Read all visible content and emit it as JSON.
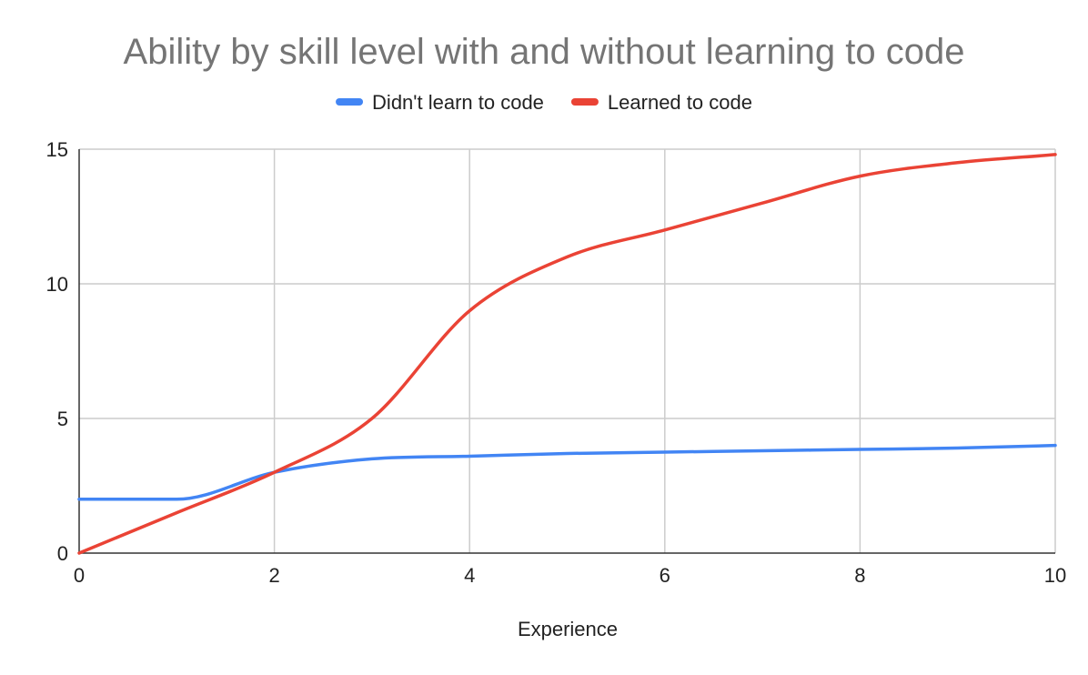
{
  "chart_data": {
    "type": "line",
    "title": "Ability by skill level with and without learning to code",
    "xlabel": "Experience",
    "ylabel": "",
    "xlim": [
      0,
      10
    ],
    "ylim": [
      0,
      15
    ],
    "xticks": [
      0,
      2,
      4,
      6,
      8,
      10
    ],
    "yticks": [
      0,
      5,
      10,
      15
    ],
    "grid": true,
    "legend": "top",
    "x": [
      0,
      1,
      2,
      3,
      4,
      5,
      6,
      7,
      8,
      9,
      10
    ],
    "series": [
      {
        "name": "Didn't learn to code",
        "color": "#4285f4",
        "values": [
          2,
          2,
          3,
          3.5,
          3.6,
          3.7,
          3.75,
          3.8,
          3.85,
          3.9,
          4
        ]
      },
      {
        "name": "Learned to code",
        "color": "#ea4335",
        "values": [
          0,
          1.5,
          3,
          5,
          9,
          11,
          12,
          13,
          14,
          14.5,
          14.8
        ]
      }
    ]
  }
}
